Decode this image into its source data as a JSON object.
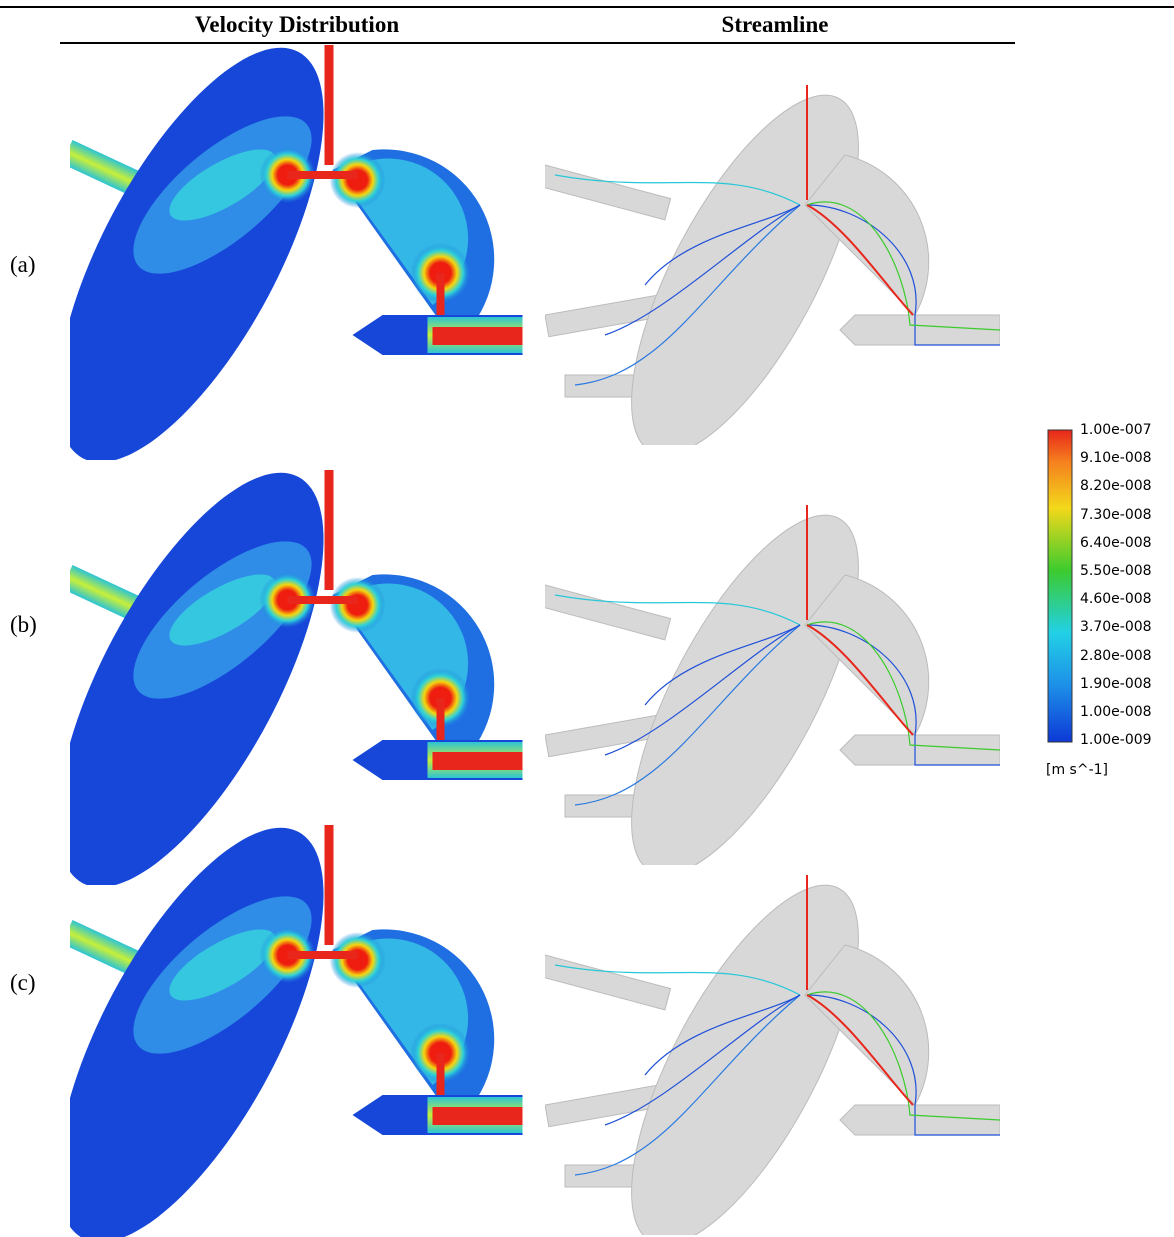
{
  "header": {
    "columns": [
      "Velocity Distribution",
      "Streamline"
    ]
  },
  "rows": [
    {
      "label": "(a)"
    },
    {
      "label": "(b)"
    },
    {
      "label": "(c)"
    }
  ],
  "legend": {
    "ticks": [
      "1.00e-007",
      "9.10e-008",
      "8.20e-008",
      "7.30e-008",
      "6.40e-008",
      "5.50e-008",
      "4.60e-008",
      "3.70e-008",
      "2.80e-008",
      "1.90e-008",
      "1.00e-008",
      "1.00e-009"
    ],
    "unit": "[m s^-1]"
  }
}
